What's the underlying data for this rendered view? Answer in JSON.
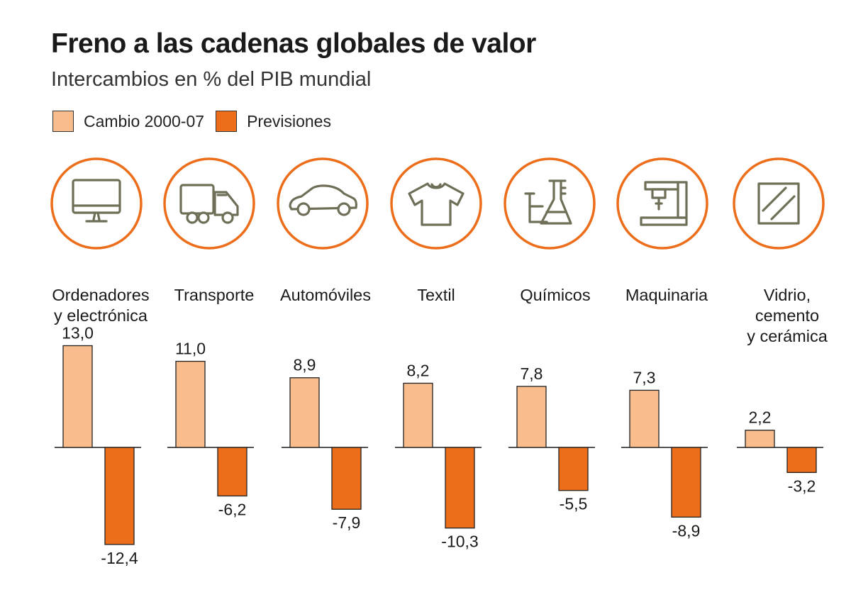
{
  "title": "Freno a las cadenas globales de valor",
  "subtitle": "Intercambios en % del PIB mundial",
  "colors": {
    "accent": "#ed6e1a",
    "light": "#f8bc8d",
    "icon": "#6f6f58",
    "baseline": "#1a1a1a"
  },
  "legend": [
    {
      "label": "Cambio 2000-07",
      "color": "#f8bc8d"
    },
    {
      "label": "Previsiones",
      "color": "#ed6e1a"
    }
  ],
  "chart_data": {
    "type": "bar",
    "categories": [
      {
        "label": [
          "Ordenadores",
          "y electrónica"
        ],
        "icon": "monitor-icon"
      },
      {
        "label": [
          "Transporte"
        ],
        "icon": "truck-icon"
      },
      {
        "label": [
          "Automóviles"
        ],
        "icon": "car-icon"
      },
      {
        "label": [
          "Textil"
        ],
        "icon": "tshirt-icon"
      },
      {
        "label": [
          "Químicos"
        ],
        "icon": "flask-icon"
      },
      {
        "label": [
          "Maquinaria"
        ],
        "icon": "machine-icon"
      },
      {
        "label": [
          "Vidrio,",
          "cemento",
          "y cerámica"
        ],
        "icon": "glass-pane-icon"
      }
    ],
    "series": [
      {
        "name": "Cambio 2000-07",
        "color": "#f8bc8d",
        "values": [
          13.0,
          11.0,
          8.9,
          8.2,
          7.8,
          7.3,
          2.2
        ],
        "labels": [
          "13,0",
          "11,0",
          "8,9",
          "8,2",
          "7,8",
          "7,3",
          "2,2"
        ]
      },
      {
        "name": "Previsiones",
        "color": "#ed6e1a",
        "values": [
          -12.4,
          -6.2,
          -7.9,
          -10.3,
          -5.5,
          -8.9,
          -3.2
        ],
        "labels": [
          "-12,4",
          "-6,2",
          "-7,9",
          "-10,3",
          "-5,5",
          "-8,9",
          "-3,2"
        ]
      }
    ],
    "ylim": [
      -13,
      14
    ],
    "grid": false,
    "legend_position": "top-left"
  }
}
